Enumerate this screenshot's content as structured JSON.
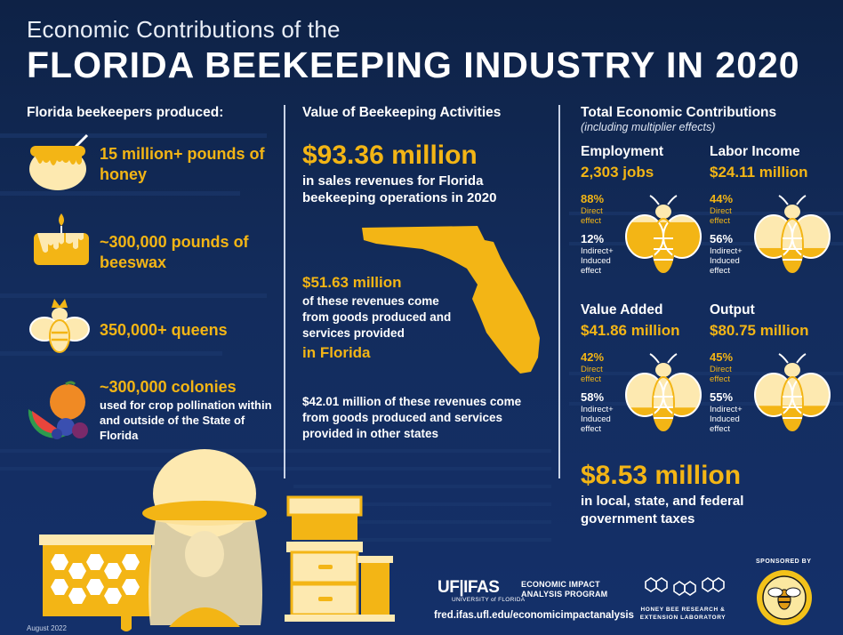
{
  "header": {
    "subtitle": "Economic Contributions of the",
    "title": "FLORIDA BEEKEEPING INDUSTRY IN 2020"
  },
  "left": {
    "heading": "Florida beekeepers produced:",
    "items": [
      {
        "big": "15 million+ pounds of honey",
        "small": "",
        "icon": "honey-pot-icon"
      },
      {
        "big": "~300,000 pounds of beeswax",
        "small": "",
        "icon": "candle-icon"
      },
      {
        "big": "350,000+ queens",
        "small": "",
        "icon": "queen-bee-icon"
      },
      {
        "big": "~300,000 colonies",
        "small": "used for crop pollination within and outside of the State of Florida",
        "icon": "fruit-icon"
      }
    ]
  },
  "middle": {
    "heading": "Value of Beekeeping Activities",
    "total_value": "$93.36 million",
    "total_desc": "in sales revenues for Florida beekeeping operations in 2020",
    "florida_value": "$51.63 million",
    "florida_desc": "of these revenues come from goods produced and services provided",
    "florida_emph": "in Florida",
    "other_value": "$42.01 million",
    "other_desc": "of these revenues come from goods produced and services provided in other states"
  },
  "right": {
    "heading": "Total Economic Contributions",
    "note": "(including multiplier effects)",
    "stats": [
      {
        "title": "Employment",
        "value": "2,303 jobs",
        "direct_pct": "88%",
        "direct_label_1": "Direct",
        "direct_label_2": "effect",
        "indirect_pct": "12%",
        "indirect_label_1": "Indirect+",
        "indirect_label_2": "Induced",
        "indirect_label_3": "effect",
        "direct_share": 0.88
      },
      {
        "title": "Labor Income",
        "value": "$24.11 million",
        "direct_pct": "44%",
        "direct_label_1": "Direct",
        "direct_label_2": "effect",
        "indirect_pct": "56%",
        "indirect_label_1": "Indirect+",
        "indirect_label_2": "Induced",
        "indirect_label_3": "effect",
        "direct_share": 0.44
      },
      {
        "title": "Value Added",
        "value": "$41.86 million",
        "direct_pct": "42%",
        "direct_label_1": "Direct",
        "direct_label_2": "effect",
        "indirect_pct": "58%",
        "indirect_label_1": "Indirect+",
        "indirect_label_2": "Induced",
        "indirect_label_3": "effect",
        "direct_share": 0.42
      },
      {
        "title": "Output",
        "value": "$80.75 million",
        "direct_pct": "45%",
        "direct_label_1": "Direct",
        "direct_label_2": "effect",
        "indirect_pct": "55%",
        "indirect_label_1": "Indirect+",
        "indirect_label_2": "Induced",
        "indirect_label_3": "effect",
        "direct_share": 0.45
      }
    ],
    "taxes_value": "$8.53 million",
    "taxes_desc": "in local, state, and federal government taxes"
  },
  "footer": {
    "date": "August 2022",
    "ifas_logo": "UF|IFAS",
    "ifas_sub": "UNIVERSITY of FLORIDA",
    "program_1": "ECONOMIC IMPACT",
    "program_2": "ANALYSIS PROGRAM",
    "url": "fred.ifas.ufl.edu/economicimpactanalysis",
    "lab_1": "HONEY BEE RESEARCH &",
    "lab_2": "EXTENSION LABORATORY",
    "sponsored_by": "SPONSORED BY",
    "sponsor_seal": "FLORIDA STATE BEEKEEPERS ASSOCIATION"
  },
  "colors": {
    "background": "#132c5c",
    "gold": "#f3b515",
    "cream": "#fde9b0",
    "white": "#ffffff"
  }
}
